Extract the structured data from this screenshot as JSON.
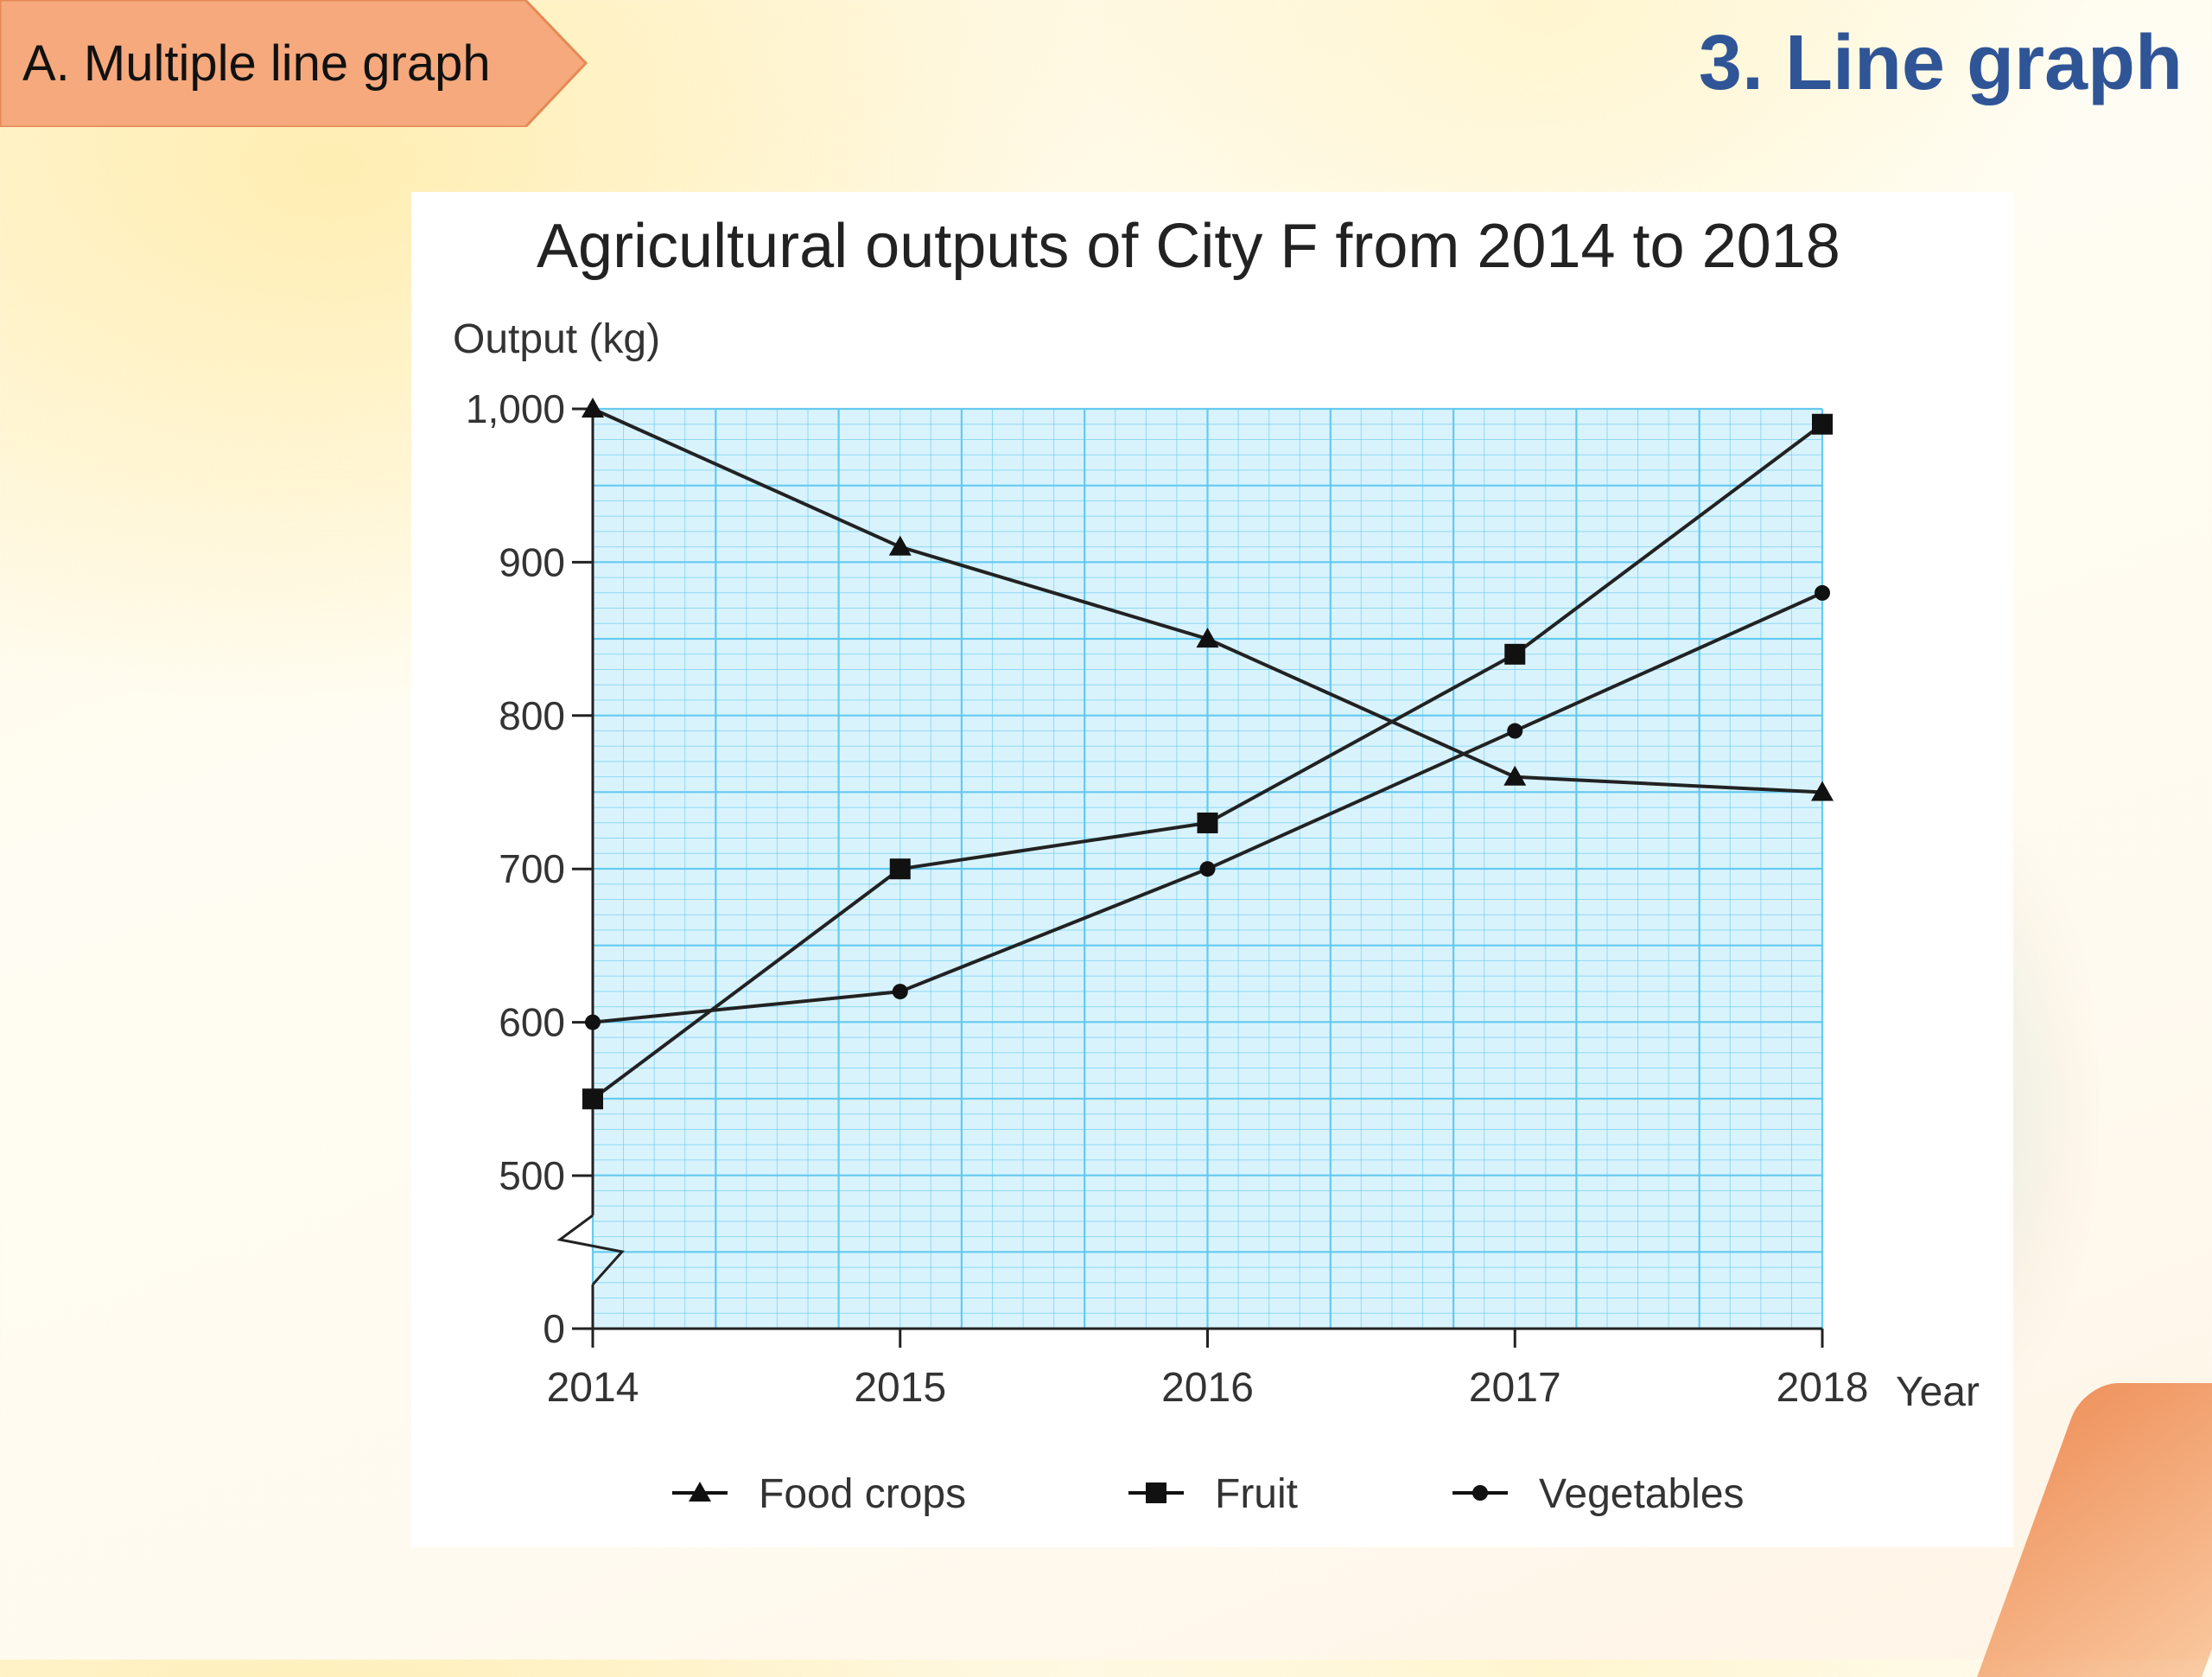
{
  "header": {
    "ribbon_label": "A. Multiple line graph",
    "slide_title": "3. Line graph"
  },
  "colors": {
    "title_blue": "#2f5597",
    "ribbon_fill": "#f5a97d",
    "ribbon_stroke": "#e58a55",
    "grid_line": "#5ec8f0",
    "grid_bg": "#d9f3fd",
    "series_line": "#222222"
  },
  "chart_data": {
    "type": "line",
    "title": "Agricultural outputs of City F from 2014 to 2018",
    "ylabel": "Output (kg)",
    "xlabel": "Year",
    "categories": [
      "2014",
      "2015",
      "2016",
      "2017",
      "2018"
    ],
    "ylim": [
      0,
      1000
    ],
    "axis_break": {
      "from": 0,
      "to": 500
    },
    "yticks": [
      0,
      500,
      600,
      700,
      800,
      900,
      1000
    ],
    "ytick_labels": [
      "0",
      "500",
      "600",
      "700",
      "800",
      "900",
      "1,000"
    ],
    "grid": true,
    "legend_position": "bottom",
    "series": [
      {
        "name": "Food crops",
        "marker": "triangle",
        "values": [
          1000,
          910,
          850,
          760,
          750
        ]
      },
      {
        "name": "Fruit",
        "marker": "square",
        "values": [
          550,
          700,
          730,
          840,
          990
        ]
      },
      {
        "name": "Vegetables",
        "marker": "circle",
        "values": [
          600,
          620,
          700,
          790,
          880
        ]
      }
    ]
  }
}
